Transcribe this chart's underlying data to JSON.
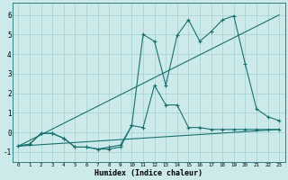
{
  "xlabel": "Humidex (Indice chaleur)",
  "bg_color": "#cceaea",
  "grid_color": "#aad4d4",
  "line_color": "#1a7070",
  "ylim": [
    -1.5,
    6.6
  ],
  "xlim": [
    -0.5,
    23.5
  ],
  "series_line1_x": [
    0,
    23
  ],
  "series_line1_y": [
    -0.7,
    6.0
  ],
  "series_line2_x": [
    0,
    23
  ],
  "series_line2_y": [
    -0.7,
    0.15
  ],
  "series_curve1_x": [
    0,
    1,
    2,
    3,
    4,
    5,
    6,
    7,
    8,
    9,
    10,
    11,
    12,
    13,
    14,
    15,
    16,
    17,
    18,
    19,
    20,
    21,
    22,
    23
  ],
  "series_curve1_y": [
    -0.7,
    -0.6,
    -0.05,
    -0.05,
    -0.3,
    -0.75,
    -0.75,
    -0.85,
    -0.85,
    -0.75,
    0.35,
    0.25,
    2.4,
    1.4,
    1.4,
    0.25,
    0.25,
    0.15,
    0.15,
    0.15,
    0.15,
    0.15,
    0.15,
    0.15
  ],
  "series_curve2_x": [
    0,
    1,
    2,
    3,
    4,
    5,
    6,
    7,
    8,
    9,
    10,
    11,
    12,
    13,
    14,
    15,
    16,
    17,
    18,
    19,
    20,
    21,
    22,
    23
  ],
  "series_curve2_y": [
    -0.7,
    -0.6,
    -0.05,
    -0.05,
    -0.3,
    -0.75,
    -0.75,
    -0.85,
    -0.75,
    -0.65,
    0.35,
    5.0,
    4.65,
    2.4,
    4.95,
    5.75,
    4.65,
    5.15,
    5.75,
    5.95,
    3.5,
    1.2,
    0.8,
    0.6
  ],
  "yticks": [
    -1,
    0,
    1,
    2,
    3,
    4,
    5,
    6
  ],
  "xticks": [
    0,
    1,
    2,
    3,
    4,
    5,
    6,
    7,
    8,
    9,
    10,
    11,
    12,
    13,
    14,
    15,
    16,
    17,
    18,
    19,
    20,
    21,
    22,
    23
  ]
}
